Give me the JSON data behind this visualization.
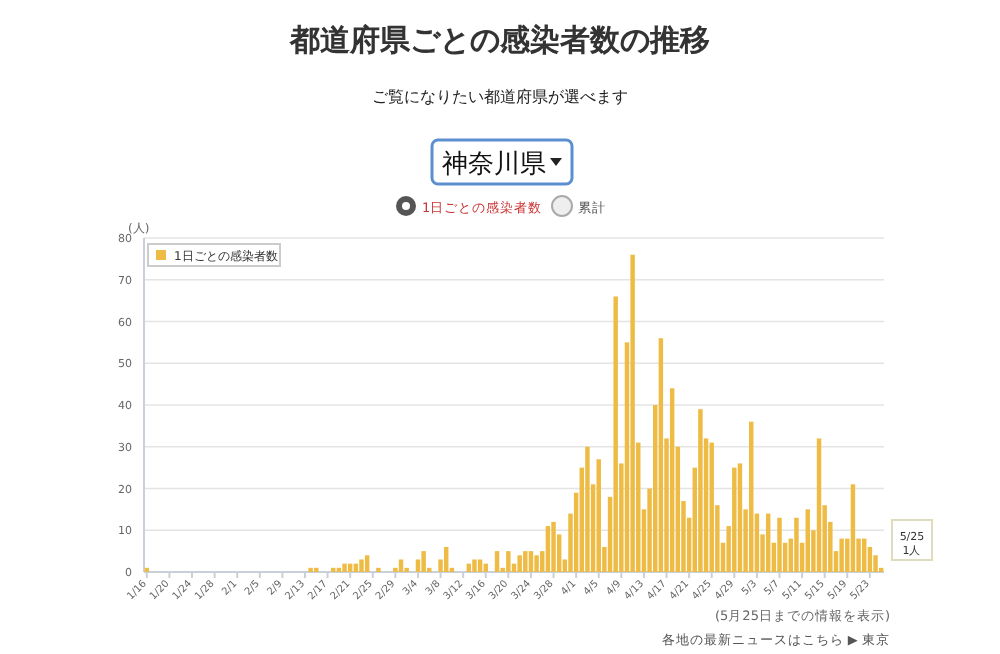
{
  "chart_data": {
    "type": "bar",
    "title": "都道府県ごとの感染者数の推移",
    "subtitle": "ご覧になりたい都道府県が選べます",
    "ylabel": "(人)",
    "categories": [
      "1/16",
      null,
      null,
      null,
      "1/20",
      null,
      null,
      null,
      "1/24",
      null,
      null,
      null,
      "1/28",
      null,
      null,
      null,
      "2/1",
      null,
      null,
      null,
      "2/5",
      null,
      null,
      null,
      "2/9",
      null,
      null,
      null,
      "2/13",
      null,
      null,
      null,
      "2/17",
      null,
      null,
      null,
      "2/21",
      null,
      null,
      null,
      "2/25",
      null,
      null,
      null,
      "2/29",
      null,
      null,
      null,
      "3/4",
      null,
      null,
      null,
      "3/8",
      null,
      null,
      null,
      "3/12",
      null,
      null,
      null,
      "3/16",
      null,
      null,
      null,
      "3/20",
      null,
      null,
      null,
      "3/24",
      null,
      null,
      null,
      "3/28",
      null,
      null,
      null,
      "4/1",
      null,
      null,
      null,
      "4/5",
      null,
      null,
      null,
      "4/9",
      null,
      null,
      null,
      "4/13",
      null,
      null,
      null,
      "4/17",
      null,
      null,
      null,
      "4/21",
      null,
      null,
      null,
      "4/25",
      null,
      null,
      null,
      "4/29",
      null,
      null,
      null,
      "5/3",
      null,
      null,
      null,
      "5/7",
      null,
      null,
      null,
      "5/11",
      null,
      null,
      null,
      "5/15",
      null,
      null,
      null,
      "5/19",
      null,
      null,
      null,
      "5/23",
      null,
      null
    ],
    "series": [
      {
        "name": "1日ごとの感染者数",
        "color": "#eebb44",
        "values": [
          1,
          0,
          0,
          0,
          0,
          0,
          0,
          0,
          0,
          0,
          0,
          0,
          0,
          0,
          0,
          0,
          0,
          0,
          0,
          0,
          0,
          0,
          0,
          0,
          0,
          0,
          0,
          0,
          0,
          1,
          1,
          0,
          0,
          1,
          1,
          2,
          2,
          2,
          3,
          4,
          0,
          1,
          0,
          0,
          1,
          3,
          1,
          0,
          3,
          5,
          1,
          0,
          3,
          6,
          1,
          0,
          0,
          2,
          3,
          3,
          2,
          0,
          5,
          1,
          5,
          2,
          4,
          5,
          5,
          4,
          5,
          11,
          12,
          9,
          3,
          14,
          19,
          25,
          30,
          21,
          27,
          6,
          18,
          66,
          26,
          55,
          76,
          31,
          15,
          20,
          40,
          56,
          32,
          44,
          30,
          17,
          13,
          25,
          39,
          32,
          31,
          16,
          7,
          11,
          25,
          26,
          15,
          36,
          14,
          9,
          14,
          7,
          13,
          7,
          8,
          13,
          7,
          15,
          10,
          32,
          16,
          12,
          5,
          8,
          8,
          21,
          8,
          8,
          6,
          4,
          1
        ]
      }
    ],
    "ylim": [
      0,
      80
    ],
    "yticks": [
      0,
      10,
      20,
      30,
      40,
      50,
      60,
      70,
      80
    ],
    "grid": "y",
    "legend": "top left",
    "annotations": [
      "神奈川県",
      "1日ごとの感染者数",
      "累計",
      "(5月25日までの情報を表示)",
      "各地の最新ニュースはこちら ▶ 東京",
      "5/25 1人"
    ]
  }
}
